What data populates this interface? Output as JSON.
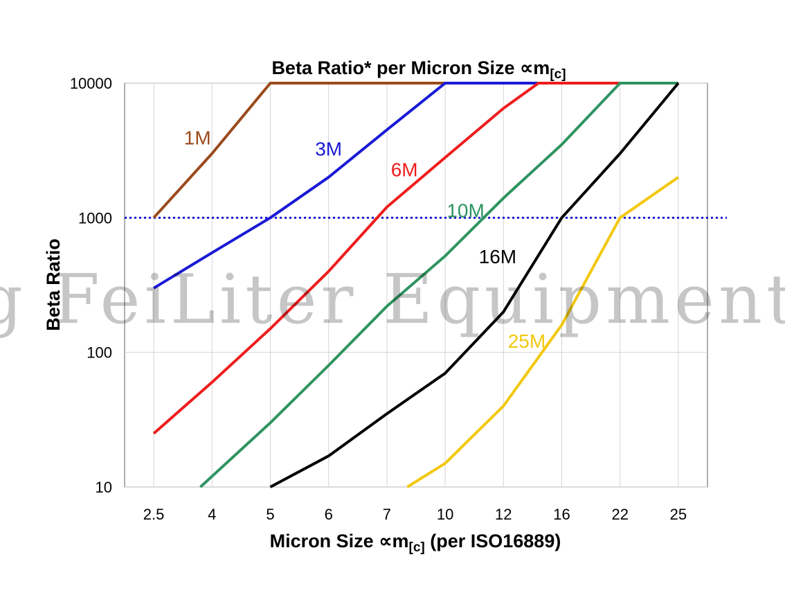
{
  "chart_data": {
    "type": "line",
    "title": "Beta Ratio* per Micron Size ∝m",
    "title_sub": "[c]",
    "xlabel_pre": "Micron Size ∝m",
    "xlabel_sub": "[c]",
    "xlabel_post": " (per ISO16889)",
    "ylabel": "Beta Ratio",
    "categories": [
      "2.5",
      "4",
      "5",
      "6",
      "7",
      "10",
      "12",
      "16",
      "22",
      "25"
    ],
    "y_scale": "log",
    "ylim": [
      10,
      10000
    ],
    "y_ticks": [
      {
        "value": 10,
        "label": "10"
      },
      {
        "value": 100,
        "label": "100"
      },
      {
        "value": 1000,
        "label": "1000"
      },
      {
        "value": 10000,
        "label": "10000"
      }
    ],
    "grid": true,
    "reference_line": {
      "value": 1000,
      "style": "dotted",
      "color": "#1a1ad6"
    },
    "watermark": "g FeiLiter Equipment Co",
    "series": [
      {
        "name": "1M",
        "color": "#9a4a1c",
        "points": [
          [
            0,
            1000
          ],
          [
            1,
            3000
          ],
          [
            2,
            10000
          ],
          [
            9,
            10000
          ]
        ]
      },
      {
        "name": "3M",
        "color": "#1a1ad6",
        "points": [
          [
            0,
            300
          ],
          [
            1,
            550
          ],
          [
            2,
            1000
          ],
          [
            3,
            2000
          ],
          [
            4,
            4500
          ],
          [
            5,
            10000
          ],
          [
            9,
            10000
          ]
        ]
      },
      {
        "name": "6M",
        "color": "#ee1c1c",
        "points": [
          [
            0,
            25
          ],
          [
            1,
            60
          ],
          [
            2,
            150
          ],
          [
            3,
            400
          ],
          [
            4,
            1200
          ],
          [
            5,
            2800
          ],
          [
            6,
            6500
          ],
          [
            6.6,
            10000
          ],
          [
            9,
            10000
          ]
        ]
      },
      {
        "name": "10M",
        "color": "#2e9460",
        "points": [
          [
            0.8,
            10
          ],
          [
            2,
            30
          ],
          [
            3,
            80
          ],
          [
            4,
            220
          ],
          [
            5,
            520
          ],
          [
            6,
            1400
          ],
          [
            7,
            3500
          ],
          [
            8,
            10000
          ],
          [
            9,
            10000
          ]
        ]
      },
      {
        "name": "16M",
        "color": "#000000",
        "points": [
          [
            2,
            10
          ],
          [
            3,
            17
          ],
          [
            4,
            35
          ],
          [
            5,
            70
          ],
          [
            6,
            200
          ],
          [
            7,
            1000
          ],
          [
            8,
            3000
          ],
          [
            9,
            10000
          ]
        ]
      },
      {
        "name": "25M",
        "color": "#f2c80f",
        "points": [
          [
            4.35,
            10
          ],
          [
            5,
            15
          ],
          [
            6,
            40
          ],
          [
            7,
            160
          ],
          [
            8,
            1000
          ],
          [
            9,
            2000
          ]
        ]
      }
    ],
    "labels": [
      {
        "series": "1M",
        "x": 0.75,
        "y": 3500
      },
      {
        "series": "3M",
        "x": 3.0,
        "y": 2900
      },
      {
        "name_key": "6M",
        "series": "6M",
        "x": 4.3,
        "y": 2030
      },
      {
        "series": "10M",
        "x": 5.35,
        "y": 1010
      },
      {
        "series": "16M",
        "x": 5.9,
        "y": 460
      },
      {
        "series": "25M",
        "x": 6.4,
        "y": 108
      }
    ]
  }
}
